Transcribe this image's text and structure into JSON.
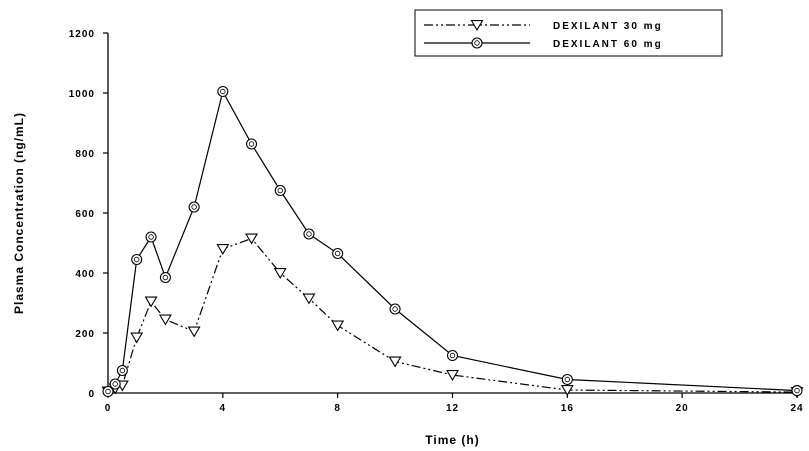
{
  "chart_data": {
    "type": "line",
    "title": "",
    "xlabel": "Time (h)",
    "ylabel": "Plasma Concentration (ng/mL)",
    "xlim": [
      0,
      24
    ],
    "ylim": [
      0,
      1200
    ],
    "xticks": [
      0,
      4,
      8,
      12,
      16,
      20,
      24
    ],
    "yticks": [
      0,
      200,
      400,
      600,
      800,
      1000,
      1200
    ],
    "xtick_labels": [
      "0",
      "4",
      "8",
      "12",
      "16",
      "20",
      "24"
    ],
    "ytick_labels": [
      "0",
      "200",
      "400",
      "600",
      "800",
      "1000",
      "1200"
    ],
    "grid": false,
    "legend_position": "top-right",
    "series": [
      {
        "name": "DEXILANT 30 mg",
        "marker": "triangle-down",
        "line_style": "dash-dot-dot",
        "x": [
          0,
          0.25,
          0.5,
          1,
          1.5,
          2,
          3,
          4,
          5,
          6,
          7,
          8,
          10,
          12,
          16,
          24
        ],
        "y": [
          5,
          15,
          25,
          185,
          305,
          245,
          205,
          480,
          515,
          400,
          315,
          225,
          105,
          60,
          10,
          3
        ]
      },
      {
        "name": "DEXILANT 60 mg",
        "marker": "circle",
        "line_style": "solid",
        "x": [
          0,
          0.25,
          0.5,
          1,
          1.5,
          2,
          3,
          4,
          5,
          6,
          7,
          8,
          10,
          12,
          16,
          24
        ],
        "y": [
          5,
          30,
          75,
          445,
          520,
          385,
          620,
          1005,
          830,
          675,
          530,
          465,
          280,
          125,
          45,
          8
        ]
      }
    ]
  }
}
